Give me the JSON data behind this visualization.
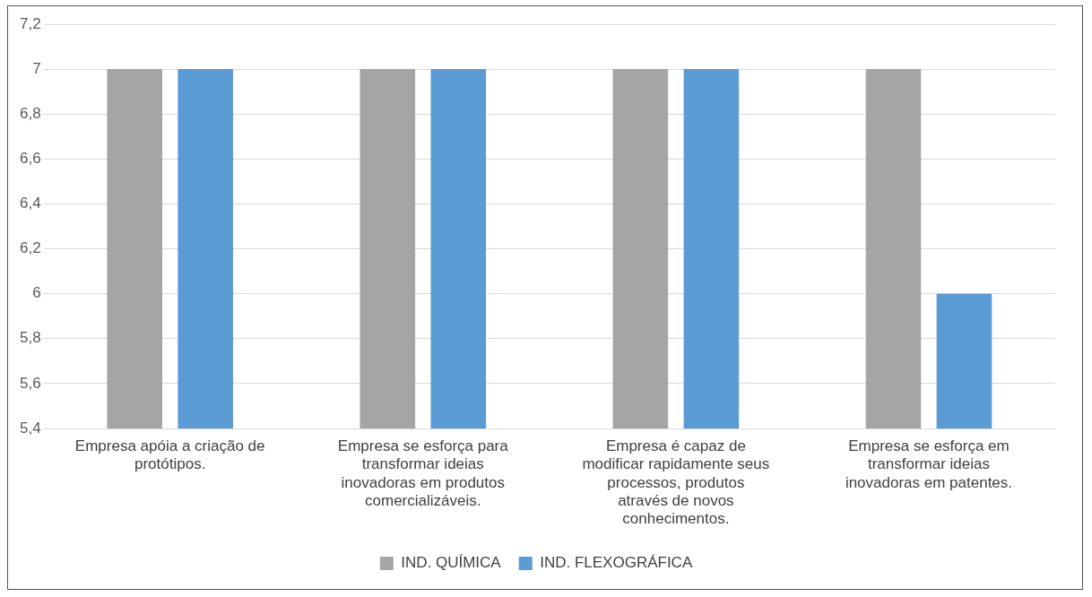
{
  "chart_data": {
    "type": "bar",
    "categories": [
      "Empresa apóia a criação de protótipos.",
      "Empresa se esforça para transformar ideias inovadoras em produtos comercializáveis.",
      "Empresa é capaz de modificar rapidamente seus processos, produtos através de novos conhecimentos.",
      "Empresa se esforça em transformar ideias inovadoras em patentes."
    ],
    "series": [
      {
        "name": "IND. QUÍMICA",
        "color": "#a5a5a5",
        "values": [
          7,
          7,
          7,
          7
        ]
      },
      {
        "name": "IND. FLEXOGRÁFICA",
        "color": "#5b9bd5",
        "values": [
          7,
          7,
          7,
          6
        ]
      }
    ],
    "ylim": [
      5.4,
      7.2
    ],
    "yticks": [
      {
        "value": 5.4,
        "label": "5,4"
      },
      {
        "value": 5.6,
        "label": "5,6"
      },
      {
        "value": 5.8,
        "label": "5,8"
      },
      {
        "value": 6,
        "label": "6"
      },
      {
        "value": 6.2,
        "label": "6,2"
      },
      {
        "value": 6.4,
        "label": "6,4"
      },
      {
        "value": 6.6,
        "label": "6,6"
      },
      {
        "value": 6.8,
        "label": "6,8"
      },
      {
        "value": 7,
        "label": "7"
      },
      {
        "value": 7.2,
        "label": "7,2"
      }
    ],
    "grid": "y",
    "legend": "bottom"
  }
}
